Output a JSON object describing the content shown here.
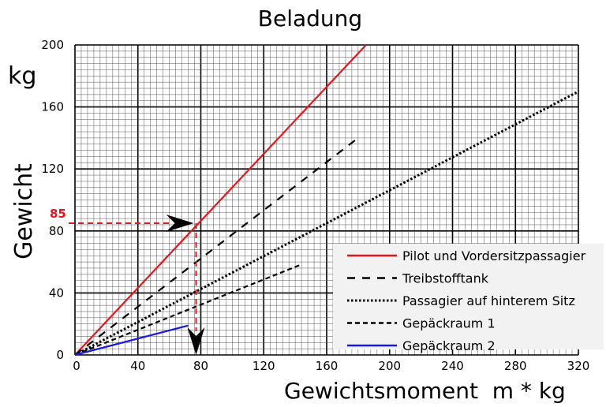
{
  "chart_data": {
    "type": "line",
    "title": "Beladung",
    "xlabel": "Gewichtsmoment  m * kg",
    "ylabel": "Gewicht",
    "yunit": "kg",
    "xlim": [
      0,
      320
    ],
    "ylim": [
      0,
      200
    ],
    "xticks": [
      0,
      40,
      80,
      120,
      160,
      200,
      240,
      280,
      320
    ],
    "yticks": [
      0,
      40,
      80,
      120,
      160,
      200
    ],
    "grid": true,
    "legend_position": "bottom-right",
    "series": [
      {
        "name": "Pilot und Vordersitzpassagier",
        "color": "#e8141c",
        "style": "solid",
        "points": [
          [
            0,
            0
          ],
          [
            185,
            200
          ]
        ]
      },
      {
        "name": "Treibstofftank",
        "color": "#000000",
        "style": "dashed",
        "points": [
          [
            0,
            0
          ],
          [
            180,
            140
          ]
        ]
      },
      {
        "name": "Passagier auf hinterem Sitz",
        "color": "#000000",
        "style": "dotted",
        "points": [
          [
            0,
            0
          ],
          [
            320,
            170
          ]
        ]
      },
      {
        "name": "Gepäckraum 1",
        "color": "#000000",
        "style": "short-dashed",
        "points": [
          [
            0,
            0
          ],
          [
            143,
            58
          ]
        ]
      },
      {
        "name": "Gepäckraum 2",
        "color": "#1a1adc",
        "style": "solid",
        "points": [
          [
            0,
            0
          ],
          [
            72,
            19
          ]
        ]
      }
    ],
    "annotation": {
      "label": "85",
      "y": 85,
      "x": 77,
      "color": "#e8141c"
    }
  }
}
